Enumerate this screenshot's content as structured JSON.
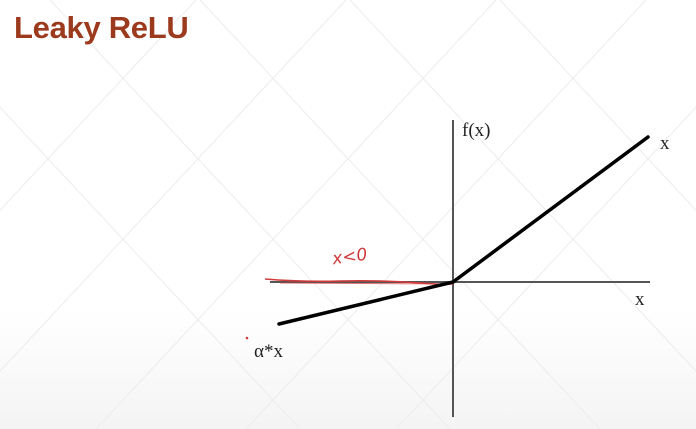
{
  "slide": {
    "title": "Leaky ReLU"
  },
  "diagram": {
    "y_axis_label": "f(x)",
    "x_axis_label": "x",
    "positive_branch_label": "x",
    "negative_branch_label": "α*x",
    "annotation": "x<0",
    "colors": {
      "title": "#9c3a1e",
      "curve": "#000000",
      "axes": "#555555",
      "annotation": "#d03a3a"
    }
  }
}
